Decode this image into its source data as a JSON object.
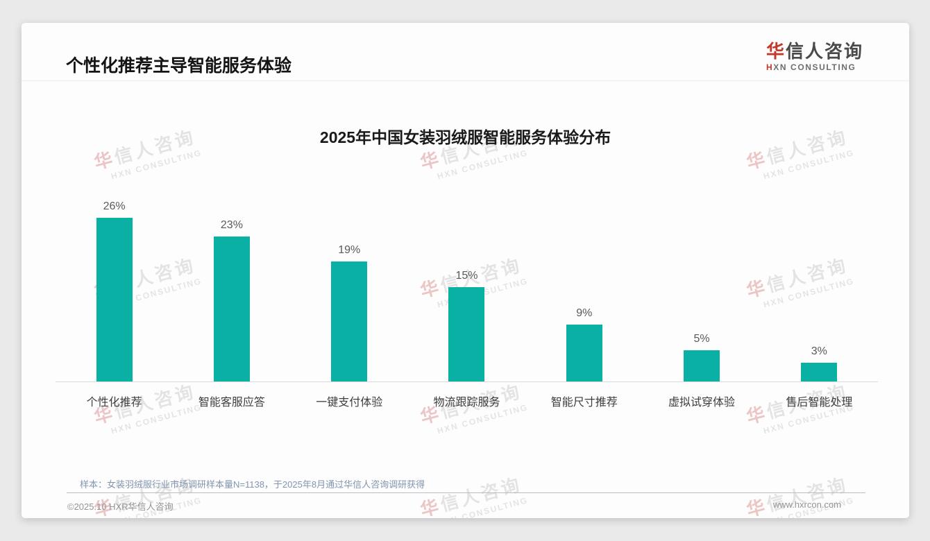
{
  "page": {
    "title": "个性化推荐主导智能服务体验",
    "logo": {
      "cn": "华信人咨询",
      "en": "HXN CONSULTING"
    },
    "watermark": {
      "cn": "华信人咨询",
      "en": "HXN CONSULTING"
    },
    "footnote": "样本：女装羽绒服行业市场调研样本量N=1138，于2025年8月通过华信人咨询调研获得",
    "footer": {
      "copyright": "©2025.10 HXR华信人咨询",
      "website": "www.hxrcon.com"
    },
    "accent_red": "#c0392b",
    "background": "#eaeaea"
  },
  "chart_data": {
    "type": "bar",
    "title": "2025年中国女装羽绒服智能服务体验分布",
    "categories": [
      "个性化推荐",
      "智能客服应答",
      "一键支付体验",
      "物流跟踪服务",
      "智能尺寸推荐",
      "虚拟试穿体验",
      "售后智能处理"
    ],
    "values": [
      26,
      23,
      19,
      15,
      9,
      5,
      3
    ],
    "unit": "%",
    "value_label_color": "#595959",
    "bar_color": "#0bb0a5",
    "axis_color": "#d9d9d9",
    "ylim": [
      0,
      29
    ],
    "grid": false,
    "legend": "none",
    "xlabel": "",
    "ylabel": ""
  }
}
